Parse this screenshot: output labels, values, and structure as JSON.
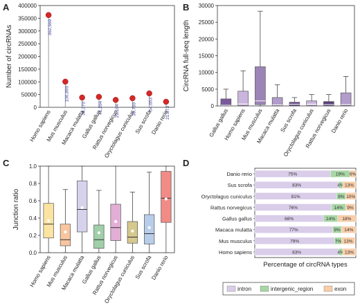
{
  "chart_data": [
    {
      "panel": "A",
      "type": "lollipop",
      "ylabel": "Number of circRNAs",
      "ylim": [
        0,
        400000
      ],
      "yticks": [
        0,
        50000,
        100000,
        150000,
        200000,
        250000,
        300000,
        350000,
        400000
      ],
      "categories": [
        "Homo sapiens",
        "Mus musculus",
        "Macaca mulatta",
        "Gallus gallus",
        "Rattus norvegicus",
        "Oryctolagus cuniculus",
        "Sus scrofa",
        "Danio rerio"
      ],
      "values": [
        362569,
        100899,
        38370,
        41204,
        29104,
        35769,
        54653,
        21873
      ],
      "value_labels": [
        "362,569",
        "100,899",
        "38,370",
        "41,204",
        "29,104",
        "35,769",
        "54,653",
        "21,873"
      ],
      "colors": {
        "marker": "#d62728",
        "stem": "#9a9a9a",
        "label": "#3f3fa0"
      }
    },
    {
      "panel": "B",
      "type": "box",
      "ylabel": "CircRNA full-seq length",
      "ylim": [
        0,
        30000
      ],
      "yticks": [
        0,
        5000,
        10000,
        15000,
        20000,
        25000,
        30000
      ],
      "categories": [
        "Gallus gallus",
        "Homo sapiens",
        "Mus musculus",
        "Macaca mulatta",
        "Sus scrofa",
        "Oryctolagus cuniculus",
        "Rattus norvegicus",
        "Danio rerio"
      ],
      "boxes": [
        {
          "min": 0,
          "q1": 60,
          "median": 200,
          "q3": 2100,
          "max": 5000,
          "color": "#7b5a9e"
        },
        {
          "min": 0,
          "q1": 100,
          "median": 600,
          "q3": 4400,
          "max": 10500,
          "color": "#c9b5de"
        },
        {
          "min": 0,
          "q1": 400,
          "median": 1500,
          "q3": 11700,
          "max": 28300,
          "color": "#9d84b7"
        },
        {
          "min": 0,
          "q1": 80,
          "median": 300,
          "q3": 2500,
          "max": 6300,
          "color": "#b29ccb"
        },
        {
          "min": 0,
          "q1": 60,
          "median": 500,
          "q3": 1100,
          "max": 2500,
          "color": "#6a4b8c"
        },
        {
          "min": 0,
          "q1": 80,
          "median": 500,
          "q3": 1500,
          "max": 3400,
          "color": "#c9b5de"
        },
        {
          "min": 0,
          "q1": 60,
          "median": 400,
          "q3": 1300,
          "max": 3400,
          "color": "#5b3f7a"
        },
        {
          "min": 0,
          "q1": 100,
          "median": 400,
          "q3": 3900,
          "max": 8800,
          "color": "#b29ccb"
        }
      ]
    },
    {
      "panel": "C",
      "type": "box",
      "ylabel": "Junction ratio",
      "ylim": [
        0,
        1.0
      ],
      "yticks": [
        0.0,
        0.2,
        0.4,
        0.6,
        0.8,
        1.0
      ],
      "ytick_labels": [
        "0.0",
        "0.2",
        "0.4",
        "0.6",
        "0.8",
        "1.0"
      ],
      "categories": [
        "Homo sapiens",
        "Mus musculus",
        "Macaca mulatta",
        "Gallus gallus",
        "Rattus norvegicus",
        "Oryctolagus cuniculus",
        "Sus scrofa",
        "Danio rerio"
      ],
      "boxes": [
        {
          "min": 0.0,
          "q1": 0.17,
          "median": 0.33,
          "q3": 0.57,
          "max": 1.0,
          "mean": 0.37,
          "color": "#fbe3a1"
        },
        {
          "min": 0.0,
          "q1": 0.08,
          "median": 0.15,
          "q3": 0.33,
          "max": 0.73,
          "mean": 0.24,
          "color": "#f7c6a0"
        },
        {
          "min": 0.0,
          "q1": 0.24,
          "median": 0.5,
          "q3": 0.83,
          "max": 1.0,
          "mean": 0.52,
          "color": "#d6d2ec"
        },
        {
          "min": 0.0,
          "q1": 0.05,
          "median": 0.15,
          "q3": 0.32,
          "max": 0.72,
          "mean": 0.23,
          "color": "#9fd0a9"
        },
        {
          "min": 0.0,
          "q1": 0.14,
          "median": 0.29,
          "q3": 0.56,
          "max": 1.0,
          "mean": 0.36,
          "color": "#e3aed6"
        },
        {
          "min": 0.0,
          "q1": 0.11,
          "median": 0.18,
          "q3": 0.36,
          "max": 0.7,
          "mean": 0.25,
          "color": "#d6c88e"
        },
        {
          "min": 0.0,
          "q1": 0.1,
          "median": 0.22,
          "q3": 0.44,
          "max": 0.93,
          "mean": 0.29,
          "color": "#b8cde9"
        },
        {
          "min": 0.0,
          "q1": 0.35,
          "median": 0.63,
          "q3": 0.94,
          "max": 1.0,
          "mean": 0.62,
          "color": "#f28a86"
        }
      ]
    },
    {
      "panel": "D",
      "type": "stacked_bar_horizontal",
      "xlabel": "Percentage of circRNA types",
      "categories": [
        "Danio rerio",
        "Sus scrofa",
        "Oryctolagus cuniculus",
        "Rattus norvegicus",
        "Gallus gallus",
        "Macaca mulatta",
        "Mus musculus",
        "Homo sapiens"
      ],
      "series": [
        {
          "name": "intron",
          "color": "#d9cde9",
          "values": [
            75,
            83,
            81,
            76,
            68,
            77,
            79,
            83
          ]
        },
        {
          "name": "intergenic_region",
          "color": "#a8d6a6",
          "values": [
            19,
            4,
            9,
            14,
            14,
            9,
            7,
            4
          ]
        },
        {
          "name": "exon",
          "color": "#f8cda8",
          "values": [
            6,
            13,
            10,
            9,
            18,
            14,
            13,
            13
          ]
        }
      ],
      "legend_position": "bottom"
    }
  ],
  "panel_labels": [
    "A",
    "B",
    "C",
    "D"
  ]
}
